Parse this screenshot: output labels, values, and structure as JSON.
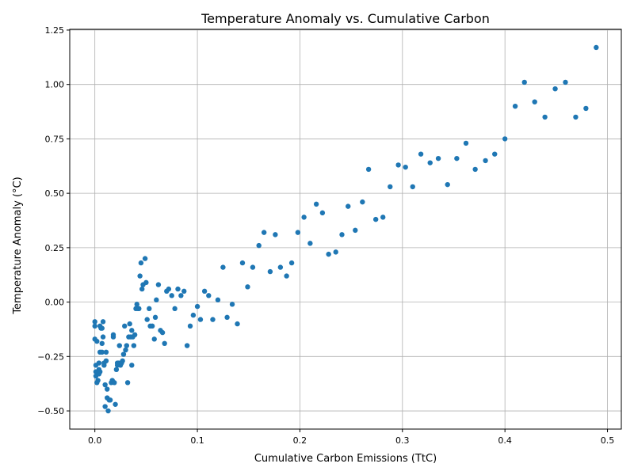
{
  "chart_data": {
    "type": "scatter",
    "title": "Temperature Anomaly vs. Cumulative Carbon",
    "xlabel": "Cumulative Carbon Emissions (TtC)",
    "ylabel": "Temperature Anomaly (°C)",
    "xlim": [
      -0.0245,
      0.5135
    ],
    "ylim": [
      -0.5835,
      1.2535
    ],
    "xticks": [
      0.0,
      0.1,
      0.2,
      0.3,
      0.4,
      0.5
    ],
    "xtick_labels": [
      "0.0",
      "0.1",
      "0.2",
      "0.3",
      "0.4",
      "0.5"
    ],
    "yticks": [
      -0.5,
      -0.25,
      0.0,
      0.25,
      0.5,
      0.75,
      1.0,
      1.25
    ],
    "ytick_labels": [
      "−0.50",
      "−0.25",
      "0.00",
      "0.25",
      "0.50",
      "0.75",
      "1.00",
      "1.25"
    ],
    "grid": true,
    "marker_color": "#1f77b4",
    "points": [
      [
        0.0,
        -0.17
      ],
      [
        0.0,
        -0.09
      ],
      [
        0.0,
        -0.11
      ],
      [
        0.001,
        -0.29
      ],
      [
        0.001,
        -0.32
      ],
      [
        0.001,
        -0.34
      ],
      [
        0.002,
        -0.18
      ],
      [
        0.002,
        -0.37
      ],
      [
        0.003,
        -0.36
      ],
      [
        0.004,
        -0.28
      ],
      [
        0.004,
        -0.31
      ],
      [
        0.004,
        -0.33
      ],
      [
        0.005,
        -0.11
      ],
      [
        0.005,
        -0.23
      ],
      [
        0.005,
        -0.32
      ],
      [
        0.006,
        -0.12
      ],
      [
        0.007,
        -0.12
      ],
      [
        0.007,
        -0.19
      ],
      [
        0.007,
        -0.23
      ],
      [
        0.008,
        -0.09
      ],
      [
        0.008,
        -0.16
      ],
      [
        0.009,
        -0.28
      ],
      [
        0.009,
        -0.29
      ],
      [
        0.01,
        -0.38
      ],
      [
        0.01,
        -0.48
      ],
      [
        0.011,
        -0.23
      ],
      [
        0.011,
        -0.27
      ],
      [
        0.012,
        -0.4
      ],
      [
        0.012,
        -0.44
      ],
      [
        0.013,
        -0.5
      ],
      [
        0.014,
        -0.45
      ],
      [
        0.015,
        -0.45
      ],
      [
        0.016,
        -0.37
      ],
      [
        0.017,
        -0.36
      ],
      [
        0.018,
        -0.16
      ],
      [
        0.018,
        -0.15
      ],
      [
        0.019,
        -0.37
      ],
      [
        0.02,
        -0.47
      ],
      [
        0.021,
        -0.31
      ],
      [
        0.022,
        -0.29
      ],
      [
        0.022,
        -0.28
      ],
      [
        0.023,
        -0.28
      ],
      [
        0.024,
        -0.2
      ],
      [
        0.025,
        -0.29
      ],
      [
        0.025,
        -0.28
      ],
      [
        0.026,
        -0.28
      ],
      [
        0.027,
        -0.27
      ],
      [
        0.028,
        -0.24
      ],
      [
        0.029,
        -0.11
      ],
      [
        0.03,
        -0.22
      ],
      [
        0.031,
        -0.2
      ],
      [
        0.032,
        -0.37
      ],
      [
        0.033,
        -0.16
      ],
      [
        0.034,
        -0.1
      ],
      [
        0.035,
        -0.16
      ],
      [
        0.036,
        -0.29
      ],
      [
        0.036,
        -0.13
      ],
      [
        0.037,
        -0.16
      ],
      [
        0.038,
        -0.2
      ],
      [
        0.039,
        -0.15
      ],
      [
        0.04,
        -0.03
      ],
      [
        0.041,
        -0.01
      ],
      [
        0.042,
        -0.03
      ],
      [
        0.043,
        -0.03
      ],
      [
        0.044,
        0.12
      ],
      [
        0.045,
        0.18
      ],
      [
        0.046,
        0.06
      ],
      [
        0.047,
        0.08
      ],
      [
        0.049,
        0.2
      ],
      [
        0.05,
        0.09
      ],
      [
        0.051,
        -0.08
      ],
      [
        0.053,
        -0.03
      ],
      [
        0.054,
        -0.11
      ],
      [
        0.056,
        -0.11
      ],
      [
        0.058,
        -0.17
      ],
      [
        0.059,
        -0.07
      ],
      [
        0.06,
        0.01
      ],
      [
        0.062,
        0.08
      ],
      [
        0.064,
        -0.13
      ],
      [
        0.066,
        -0.14
      ],
      [
        0.068,
        -0.19
      ],
      [
        0.07,
        0.05
      ],
      [
        0.072,
        0.06
      ],
      [
        0.075,
        0.03
      ],
      [
        0.078,
        -0.03
      ],
      [
        0.081,
        0.06
      ],
      [
        0.084,
        0.03
      ],
      [
        0.087,
        0.05
      ],
      [
        0.09,
        -0.2
      ],
      [
        0.093,
        -0.11
      ],
      [
        0.096,
        -0.06
      ],
      [
        0.1,
        -0.02
      ],
      [
        0.103,
        -0.08
      ],
      [
        0.107,
        0.05
      ],
      [
        0.111,
        0.03
      ],
      [
        0.115,
        -0.08
      ],
      [
        0.12,
        0.01
      ],
      [
        0.125,
        0.16
      ],
      [
        0.129,
        -0.07
      ],
      [
        0.134,
        -0.01
      ],
      [
        0.139,
        -0.1
      ],
      [
        0.144,
        0.18
      ],
      [
        0.149,
        0.07
      ],
      [
        0.154,
        0.16
      ],
      [
        0.16,
        0.26
      ],
      [
        0.165,
        0.32
      ],
      [
        0.171,
        0.14
      ],
      [
        0.176,
        0.31
      ],
      [
        0.181,
        0.16
      ],
      [
        0.187,
        0.12
      ],
      [
        0.192,
        0.18
      ],
      [
        0.198,
        0.32
      ],
      [
        0.204,
        0.39
      ],
      [
        0.21,
        0.27
      ],
      [
        0.216,
        0.45
      ],
      [
        0.222,
        0.41
      ],
      [
        0.228,
        0.22
      ],
      [
        0.235,
        0.23
      ],
      [
        0.241,
        0.31
      ],
      [
        0.247,
        0.44
      ],
      [
        0.254,
        0.33
      ],
      [
        0.261,
        0.46
      ],
      [
        0.267,
        0.61
      ],
      [
        0.274,
        0.38
      ],
      [
        0.281,
        0.39
      ],
      [
        0.288,
        0.53
      ],
      [
        0.296,
        0.63
      ],
      [
        0.303,
        0.62
      ],
      [
        0.31,
        0.53
      ],
      [
        0.318,
        0.68
      ],
      [
        0.327,
        0.64
      ],
      [
        0.335,
        0.66
      ],
      [
        0.344,
        0.54
      ],
      [
        0.353,
        0.66
      ],
      [
        0.362,
        0.73
      ],
      [
        0.371,
        0.61
      ],
      [
        0.381,
        0.65
      ],
      [
        0.39,
        0.68
      ],
      [
        0.4,
        0.75
      ],
      [
        0.41,
        0.9
      ],
      [
        0.419,
        1.01
      ],
      [
        0.429,
        0.92
      ],
      [
        0.439,
        0.85
      ],
      [
        0.449,
        0.98
      ],
      [
        0.459,
        1.01
      ],
      [
        0.469,
        0.85
      ],
      [
        0.479,
        0.89
      ],
      [
        0.489,
        1.17
      ]
    ]
  }
}
